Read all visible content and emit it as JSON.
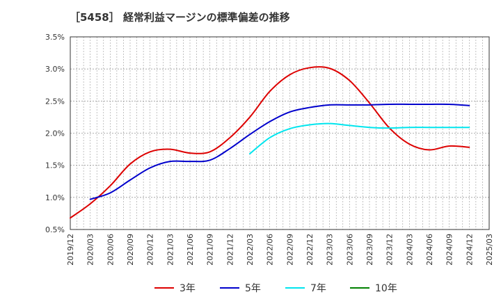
{
  "chart_data": {
    "type": "line",
    "title": "［5458］ 経常利益マージンの標準偏差の推移",
    "xlabel": "",
    "ylabel": "",
    "ylim": [
      0.5,
      3.5
    ],
    "yticks": [
      0.5,
      1.0,
      1.5,
      2.0,
      2.5,
      3.0,
      3.5
    ],
    "ytick_labels": [
      "0.5%",
      "1.0%",
      "1.5%",
      "2.0%",
      "2.5%",
      "3.0%",
      "3.5%"
    ],
    "xlim": [
      "2019/12",
      "2025/03"
    ],
    "xtick_labels": [
      "2019/12",
      "2020/03",
      "2020/06",
      "2020/09",
      "2020/12",
      "2021/03",
      "2021/06",
      "2021/09",
      "2021/12",
      "2022/03",
      "2022/06",
      "2022/09",
      "2022/12",
      "2023/03",
      "2023/06",
      "2023/09",
      "2023/12",
      "2024/03",
      "2024/06",
      "2024/09",
      "2024/12",
      "2025/03"
    ],
    "grid": true,
    "legend_position": "bottom",
    "series": [
      {
        "name": "3年",
        "color": "#dd0000",
        "x": [
          "2019/12",
          "2020/03",
          "2020/06",
          "2020/09",
          "2020/12",
          "2021/03",
          "2021/06",
          "2021/09",
          "2021/12",
          "2022/03",
          "2022/06",
          "2022/09",
          "2022/12",
          "2023/03",
          "2023/06",
          "2023/09",
          "2023/12",
          "2024/03",
          "2024/06",
          "2024/09",
          "2024/12"
        ],
        "values": [
          0.68,
          0.9,
          1.18,
          1.52,
          1.71,
          1.75,
          1.69,
          1.71,
          1.93,
          2.25,
          2.65,
          2.91,
          3.02,
          3.01,
          2.82,
          2.47,
          2.08,
          1.83,
          1.74,
          1.8,
          1.78
        ]
      },
      {
        "name": "5年",
        "color": "#0000cc",
        "x": [
          "2020/03",
          "2020/06",
          "2020/09",
          "2020/12",
          "2021/03",
          "2021/06",
          "2021/09",
          "2021/12",
          "2022/03",
          "2022/06",
          "2022/09",
          "2022/12",
          "2023/03",
          "2023/06",
          "2023/09",
          "2023/12",
          "2024/03",
          "2024/06",
          "2024/09",
          "2024/12"
        ],
        "values": [
          0.97,
          1.07,
          1.27,
          1.46,
          1.56,
          1.56,
          1.58,
          1.76,
          1.98,
          2.18,
          2.33,
          2.4,
          2.44,
          2.44,
          2.44,
          2.45,
          2.45,
          2.45,
          2.45,
          2.43
        ]
      },
      {
        "name": "7年",
        "color": "#00e5ee",
        "x": [
          "2022/03",
          "2022/06",
          "2022/09",
          "2022/12",
          "2023/03",
          "2023/06",
          "2023/09",
          "2023/12",
          "2024/03",
          "2024/06",
          "2024/09",
          "2024/12"
        ],
        "values": [
          1.68,
          1.93,
          2.07,
          2.13,
          2.15,
          2.12,
          2.09,
          2.08,
          2.09,
          2.09,
          2.09,
          2.09
        ]
      },
      {
        "name": "10年",
        "color": "#008000",
        "x": [],
        "values": []
      }
    ]
  }
}
